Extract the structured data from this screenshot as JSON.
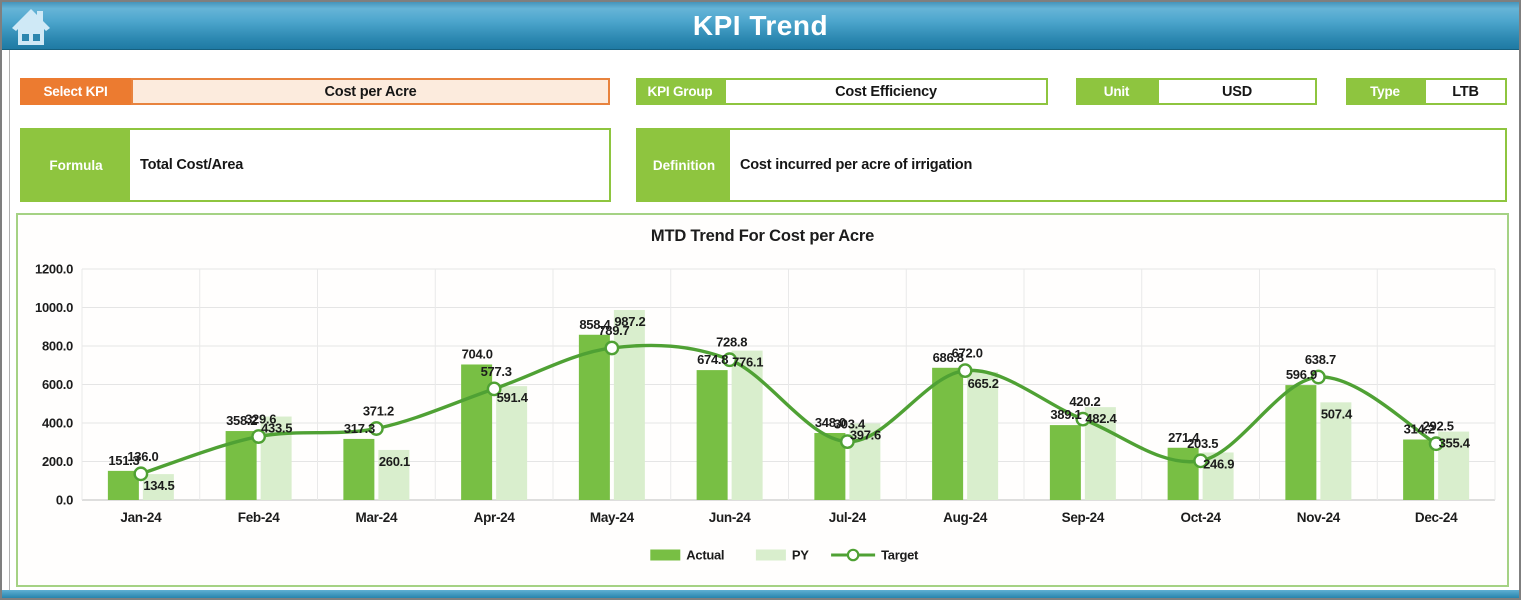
{
  "header": {
    "title": "KPI Trend"
  },
  "controls": {
    "select_kpi": {
      "label": "Select KPI",
      "value": "Cost per Acre"
    },
    "kpi_group": {
      "label": "KPI Group",
      "value": "Cost Efficiency"
    },
    "unit": {
      "label": "Unit",
      "value": "USD"
    },
    "type": {
      "label": "Type",
      "value": "LTB"
    },
    "formula": {
      "label": "Formula",
      "value": "Total Cost/Area"
    },
    "definition": {
      "label": "Definition",
      "value": "Cost incurred per acre of irrigation"
    }
  },
  "colors": {
    "header_blue": "#2c88b1",
    "accent_orange": "#ec7b30",
    "accent_green": "#8ec53f",
    "panel_border_green": "#a5d284"
  },
  "chart_data": {
    "type": "bar",
    "subtype": "clustered bars + smoothed line combo",
    "title": "MTD Trend For Cost per Acre",
    "categories": [
      "Jan-24",
      "Feb-24",
      "Mar-24",
      "Apr-24",
      "May-24",
      "Jun-24",
      "Jul-24",
      "Aug-24",
      "Sep-24",
      "Oct-24",
      "Nov-24",
      "Dec-24"
    ],
    "series": [
      {
        "name": "Actual",
        "type": "bar",
        "color": "#78bf44",
        "values": [
          151.3,
          358.2,
          317.3,
          704.0,
          858.4,
          674.8,
          348.0,
          686.8,
          389.1,
          271.4,
          596.9,
          314.2
        ]
      },
      {
        "name": "PY",
        "type": "bar",
        "color": "#d9eecd",
        "values": [
          134.5,
          433.5,
          260.1,
          591.4,
          987.2,
          776.1,
          397.6,
          665.2,
          482.4,
          246.9,
          507.4,
          355.4
        ]
      },
      {
        "name": "Target",
        "type": "line",
        "color": "#4fa134",
        "marker": "circle",
        "values": [
          136.0,
          329.6,
          371.2,
          577.3,
          789.7,
          728.8,
          303.4,
          672.0,
          420.2,
          203.5,
          638.7,
          292.5
        ]
      }
    ],
    "xlabel": "",
    "ylabel": "",
    "ylim": [
      0,
      1200
    ],
    "ytick_step": 200,
    "ytick_format": "one_decimal",
    "grid": true,
    "legend_position": "bottom"
  }
}
